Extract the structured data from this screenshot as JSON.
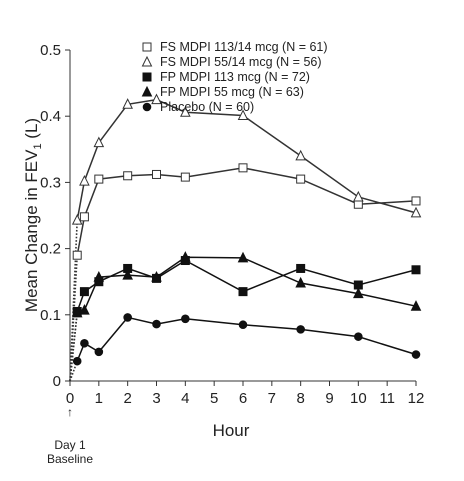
{
  "chart_data": {
    "type": "line",
    "xlabel": "Hour",
    "ylabel_main": "Mean Change in FEV",
    "ylabel_sub": "1",
    "ylabel_unit": " (L)",
    "xlim": [
      0,
      12
    ],
    "ylim": [
      0,
      0.5
    ],
    "x_ticks": [
      0,
      1,
      2,
      3,
      4,
      5,
      6,
      7,
      8,
      9,
      10,
      11,
      12
    ],
    "y_ticks": [
      0,
      0.1,
      0.2,
      0.3,
      0.4,
      0.5
    ],
    "y_tick_labels": [
      "0",
      "0.1",
      "0.2",
      "0.3",
      "0.4",
      "0.5"
    ],
    "legend_placement": "top-right",
    "annotation": {
      "arrow": "↑",
      "line1": "Day 1",
      "line2": "Baseline"
    },
    "series": [
      {
        "name": "FS MDPI 113/14 mcg (N = 61)",
        "marker": "square-open",
        "x": [
          0.25,
          0.5,
          1,
          2,
          3,
          4,
          6,
          8,
          10,
          12
        ],
        "y": [
          0.19,
          0.248,
          0.305,
          0.31,
          0.312,
          0.308,
          0.322,
          0.305,
          0.267,
          0.272
        ]
      },
      {
        "name": "FS MDPI 55/14 mcg (N = 56)",
        "marker": "triangle-open",
        "x": [
          0.25,
          0.5,
          1,
          2,
          3,
          4,
          6,
          8,
          10,
          12
        ],
        "y": [
          0.243,
          0.302,
          0.36,
          0.418,
          0.425,
          0.406,
          0.401,
          0.34,
          0.278,
          0.254
        ]
      },
      {
        "name": "FP MDPI 113 mcg (N = 72)",
        "marker": "square-filled",
        "x": [
          0.25,
          0.5,
          1,
          2,
          3,
          4,
          6,
          8,
          10,
          12
        ],
        "y": [
          0.105,
          0.135,
          0.15,
          0.17,
          0.155,
          0.182,
          0.135,
          0.17,
          0.145,
          0.168
        ]
      },
      {
        "name": "FP MDPI 55 mcg (N = 63)",
        "marker": "triangle-filled",
        "x": [
          0.25,
          0.5,
          1,
          2,
          3,
          4,
          6,
          8,
          10,
          12
        ],
        "y": [
          0.103,
          0.107,
          0.157,
          0.16,
          0.157,
          0.187,
          0.186,
          0.148,
          0.132,
          0.113
        ]
      },
      {
        "name": "Placebo (N = 60)",
        "marker": "circle-filled",
        "x": [
          0.25,
          0.5,
          1,
          2,
          3,
          4,
          6,
          8,
          10,
          12
        ],
        "y": [
          0.03,
          0.057,
          0.044,
          0.096,
          0.086,
          0.094,
          0.085,
          0.078,
          0.067,
          0.04
        ]
      }
    ]
  }
}
